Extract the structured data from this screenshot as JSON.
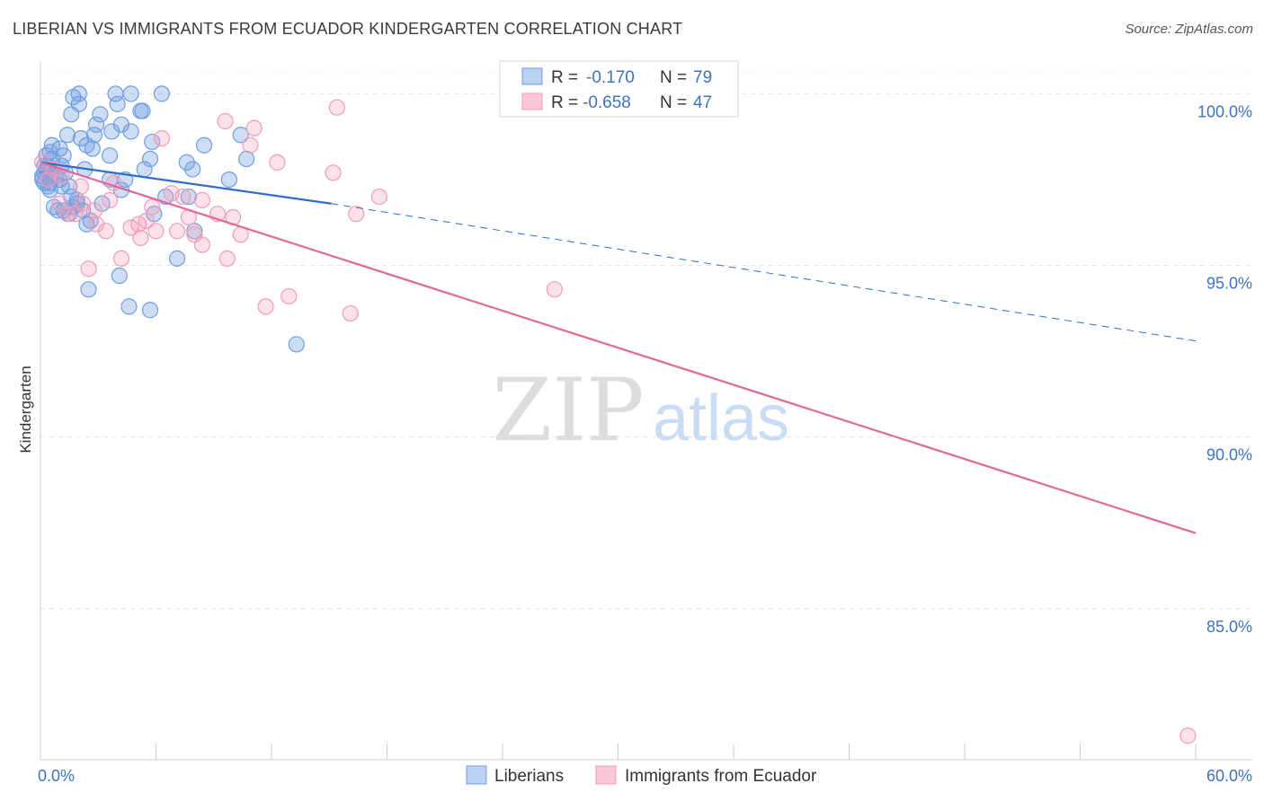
{
  "header": {
    "title": "LIBERIAN VS IMMIGRANTS FROM ECUADOR KINDERGARTEN CORRELATION CHART",
    "source": "Source: ZipAtlas.com"
  },
  "watermark": {
    "zip": "ZIP",
    "atlas": "atlas"
  },
  "legend_box": {
    "rows": [
      {
        "r_label": "R =",
        "r_value": "-0.170",
        "n_label": "N =",
        "n_value": "79"
      },
      {
        "r_label": "R =",
        "r_value": "-0.658",
        "n_label": "N =",
        "n_value": "47"
      }
    ]
  },
  "bottom_legend": {
    "liberians": "Liberians",
    "ecuador": "Immigrants from Ecuador"
  },
  "chart_data": {
    "type": "scatter",
    "title": "LIBERIAN VS IMMIGRANTS FROM ECUADOR KINDERGARTEN CORRELATION CHART",
    "xlabel": "",
    "ylabel": "Kindergarten",
    "xlim": [
      0,
      60
    ],
    "ylim": [
      80.6,
      100.9
    ],
    "x_tick_labels": [
      "0.0%",
      "60.0%"
    ],
    "y_ticks": [
      85,
      90,
      95,
      100
    ],
    "y_tick_labels": [
      "85.0%",
      "90.0%",
      "95.0%",
      "100.0%"
    ],
    "colors": {
      "liberians": "#6f9ee0",
      "ecuador": "#f29bb6",
      "liberians_line": "#2f6ccf",
      "ecuador_line": "#e0699a"
    },
    "series": [
      {
        "name": "Liberians",
        "R": -0.17,
        "N": 79,
        "trend": {
          "x0": 0,
          "y0": 98.0,
          "x1": 15.1,
          "y1": 96.8,
          "dash_to_x": 60,
          "dash_to_y": 92.8
        },
        "points": [
          [
            2.0,
            100.0
          ],
          [
            3.9,
            100.0
          ],
          [
            4.7,
            100.0
          ],
          [
            6.3,
            100.0
          ],
          [
            1.7,
            99.9
          ],
          [
            2.0,
            99.7
          ],
          [
            4.0,
            99.7
          ],
          [
            5.2,
            99.5
          ],
          [
            1.6,
            99.4
          ],
          [
            3.1,
            99.4
          ],
          [
            5.3,
            99.5
          ],
          [
            2.9,
            99.1
          ],
          [
            4.2,
            99.1
          ],
          [
            3.7,
            98.9
          ],
          [
            4.7,
            98.9
          ],
          [
            1.4,
            98.8
          ],
          [
            2.8,
            98.8
          ],
          [
            2.1,
            98.7
          ],
          [
            5.8,
            98.6
          ],
          [
            8.5,
            98.5
          ],
          [
            0.6,
            98.5
          ],
          [
            1.0,
            98.4
          ],
          [
            2.4,
            98.5
          ],
          [
            2.7,
            98.4
          ],
          [
            0.5,
            98.3
          ],
          [
            1.2,
            98.2
          ],
          [
            3.6,
            98.2
          ],
          [
            5.7,
            98.1
          ],
          [
            7.6,
            98.0
          ],
          [
            10.7,
            98.1
          ],
          [
            0.3,
            98.2
          ],
          [
            0.2,
            97.9
          ],
          [
            0.4,
            97.9
          ],
          [
            1.1,
            97.9
          ],
          [
            2.3,
            97.8
          ],
          [
            5.4,
            97.8
          ],
          [
            7.9,
            97.8
          ],
          [
            0.6,
            97.7
          ],
          [
            1.3,
            97.7
          ],
          [
            0.1,
            97.6
          ],
          [
            0.8,
            97.6
          ],
          [
            1.0,
            97.5
          ],
          [
            3.6,
            97.5
          ],
          [
            4.4,
            97.5
          ],
          [
            9.8,
            97.5
          ],
          [
            0.2,
            97.4
          ],
          [
            0.5,
            97.4
          ],
          [
            1.1,
            97.3
          ],
          [
            0.4,
            97.3
          ],
          [
            1.6,
            97.0
          ],
          [
            4.2,
            97.2
          ],
          [
            0.5,
            97.2
          ],
          [
            7.7,
            97.0
          ],
          [
            1.9,
            96.9
          ],
          [
            1.7,
            96.7
          ],
          [
            0.7,
            96.7
          ],
          [
            2.2,
            96.6
          ],
          [
            0.9,
            96.6
          ],
          [
            5.9,
            96.5
          ],
          [
            1.2,
            96.6
          ],
          [
            3.2,
            96.8
          ],
          [
            2.6,
            96.3
          ],
          [
            2.4,
            96.2
          ],
          [
            8.0,
            96.0
          ],
          [
            10.4,
            98.8
          ],
          [
            0.1,
            97.5
          ],
          [
            1.5,
            96.5
          ],
          [
            6.5,
            97.0
          ],
          [
            0.3,
            97.8
          ],
          [
            1.9,
            96.8
          ],
          [
            0.2,
            97.7
          ],
          [
            7.1,
            95.2
          ],
          [
            4.1,
            94.7
          ],
          [
            2.5,
            94.3
          ],
          [
            4.6,
            93.8
          ],
          [
            5.7,
            93.7
          ],
          [
            13.3,
            92.7
          ],
          [
            0.6,
            98.1
          ],
          [
            1.5,
            97.3
          ]
        ]
      },
      {
        "name": "Immigrants from Ecuador",
        "R": -0.658,
        "N": 47,
        "trend": {
          "x0": 0,
          "y0": 98.0,
          "x1": 60,
          "y1": 87.2
        },
        "points": [
          [
            15.4,
            99.6
          ],
          [
            9.6,
            99.2
          ],
          [
            11.1,
            99.0
          ],
          [
            6.3,
            98.7
          ],
          [
            10.9,
            98.5
          ],
          [
            12.3,
            98.0
          ],
          [
            15.2,
            97.7
          ],
          [
            0.7,
            97.8
          ],
          [
            1.1,
            97.6
          ],
          [
            3.8,
            97.4
          ],
          [
            2.1,
            97.3
          ],
          [
            6.8,
            97.1
          ],
          [
            17.6,
            97.0
          ],
          [
            7.4,
            97.0
          ],
          [
            3.6,
            96.9
          ],
          [
            8.4,
            96.9
          ],
          [
            1.0,
            96.8
          ],
          [
            5.8,
            96.7
          ],
          [
            9.2,
            96.5
          ],
          [
            10.0,
            96.4
          ],
          [
            16.4,
            96.5
          ],
          [
            2.8,
            96.6
          ],
          [
            1.4,
            96.5
          ],
          [
            7.7,
            96.4
          ],
          [
            5.5,
            96.3
          ],
          [
            6.0,
            96.0
          ],
          [
            2.9,
            96.2
          ],
          [
            5.1,
            96.2
          ],
          [
            4.7,
            96.1
          ],
          [
            3.4,
            96.0
          ],
          [
            7.1,
            96.0
          ],
          [
            8.0,
            95.9
          ],
          [
            10.4,
            95.9
          ],
          [
            5.2,
            95.8
          ],
          [
            8.4,
            95.6
          ],
          [
            4.2,
            95.2
          ],
          [
            9.7,
            95.2
          ],
          [
            2.5,
            94.9
          ],
          [
            26.7,
            94.3
          ],
          [
            12.9,
            94.1
          ],
          [
            11.7,
            93.8
          ],
          [
            16.1,
            93.6
          ],
          [
            59.6,
            81.3
          ],
          [
            0.1,
            98.0
          ],
          [
            0.4,
            97.5
          ],
          [
            2.2,
            96.8
          ],
          [
            1.8,
            96.5
          ]
        ]
      }
    ]
  }
}
